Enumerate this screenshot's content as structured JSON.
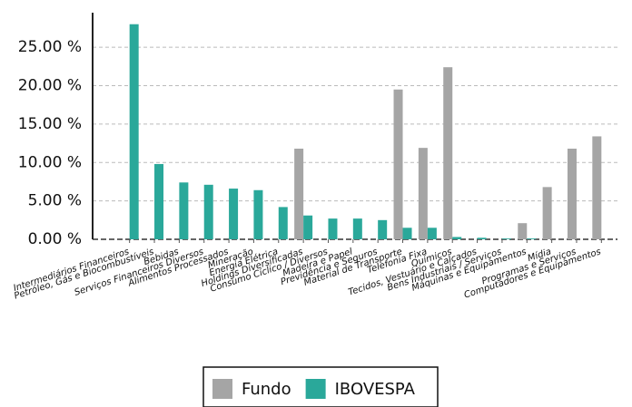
{
  "chart_data": {
    "type": "bar",
    "categories": [
      "Intermediários Financeiros",
      "Petróleo, Gás e Biocombustíveis",
      "Bebidas",
      "Serviços Financeiros Diversos",
      "Alimentos Processados",
      "Mineração",
      "Energia Elétrica",
      "Holdings Diversificadas",
      "Consumo Cíclico / Diversos",
      "Madeira e Papel",
      "Previdência e Seguros",
      "Material de Transporte",
      "Telefonia Fixa",
      "Químicos",
      "Tecidos, Vestuário e Calçados",
      "Bens Industriais / Serviços",
      "Máquinas e Equipamentos",
      "Mídia",
      "Programas e Serviços",
      "Computadores e Equipamentos"
    ],
    "series": [
      {
        "name": "Fundo",
        "color": "#a5a5a5",
        "values": [
          0,
          0,
          0,
          0,
          0,
          0,
          0,
          11.8,
          0,
          0,
          0,
          19.5,
          11.9,
          22.4,
          0,
          0,
          2.1,
          6.8,
          11.8,
          13.4
        ]
      },
      {
        "name": "IBOVESPA",
        "color": "#2aa89a",
        "values": [
          28.0,
          9.8,
          7.4,
          7.1,
          6.6,
          6.4,
          4.2,
          3.1,
          2.7,
          2.7,
          2.5,
          1.5,
          1.5,
          0.3,
          0.2,
          0.1,
          0.1,
          0,
          0,
          0
        ]
      }
    ],
    "ylim": [
      0,
      29.5
    ],
    "yticks": [
      {
        "value": 0,
        "label": "0.00 %"
      },
      {
        "value": 5,
        "label": "5.00 %"
      },
      {
        "value": 10,
        "label": "10.00 %"
      },
      {
        "value": 15,
        "label": "15.00 %"
      },
      {
        "value": 20,
        "label": "20.00 %"
      },
      {
        "value": 25,
        "label": "25.00 %"
      }
    ],
    "grid": true
  }
}
